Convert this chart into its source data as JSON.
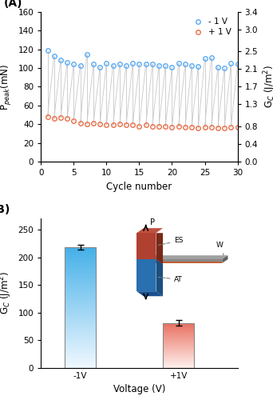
{
  "panel_A": {
    "title": "(A)",
    "xlabel": "Cycle number",
    "ylabel_left": "P$_{peak}$(mN)",
    "ylabel_right": "G$_C$ (J/m$^2$)",
    "xlim": [
      0,
      30
    ],
    "ylim_left": [
      0,
      160
    ],
    "ylim_right": [
      0.0,
      3.4
    ],
    "yticks_left": [
      0,
      20,
      40,
      60,
      80,
      100,
      120,
      140,
      160
    ],
    "yticks_right": [
      0.0,
      0.4,
      0.8,
      1.3,
      1.7,
      2.1,
      2.5,
      3.0,
      3.4
    ],
    "xticks": [
      0,
      5,
      10,
      15,
      20,
      25,
      30
    ],
    "neg1V_color": "#5aabf5",
    "pos1V_color": "#e8704a",
    "line_color": "#c8c8c8",
    "neg1V_x": [
      1,
      2,
      3,
      4,
      5,
      6,
      7,
      8,
      9,
      10,
      11,
      12,
      13,
      14,
      15,
      16,
      17,
      18,
      19,
      20,
      21,
      22,
      23,
      24,
      25,
      26,
      27,
      28,
      29,
      30
    ],
    "neg1V_values": [
      119,
      113,
      109,
      106,
      104,
      103,
      115,
      104,
      101,
      105,
      103,
      104,
      103,
      105,
      104,
      104,
      104,
      103,
      103,
      101,
      105,
      104,
      103,
      102,
      110,
      111,
      101,
      100,
      105,
      104
    ],
    "pos1V_x": [
      1,
      2,
      3,
      4,
      5,
      6,
      7,
      8,
      9,
      10,
      11,
      12,
      13,
      14,
      15,
      16,
      17,
      18,
      19,
      20,
      21,
      22,
      23,
      24,
      25,
      26,
      27,
      28,
      29,
      30
    ],
    "pos1V_values": [
      48,
      46,
      47,
      46,
      44,
      41,
      40,
      41,
      40,
      39,
      39,
      40,
      39,
      39,
      38,
      39,
      38,
      38,
      38,
      37,
      38,
      37,
      37,
      36,
      37,
      37,
      36,
      36,
      37,
      37
    ]
  },
  "panel_B": {
    "title": "(B)",
    "xlabel": "Voltage (V)",
    "ylabel": "G$_C$ (J/m$^2$)",
    "categories": [
      "-1V",
      "+1V"
    ],
    "values": [
      218,
      81
    ],
    "errors": [
      4,
      5
    ],
    "ylim": [
      0,
      270
    ],
    "yticks": [
      0,
      50,
      100,
      150,
      200,
      250
    ],
    "bar1_color_top": "#45b0e8",
    "bar1_color_bot": "#f0f8ff",
    "bar2_color_top": "#e87060",
    "bar2_color_bot": "#fff0ee"
  }
}
